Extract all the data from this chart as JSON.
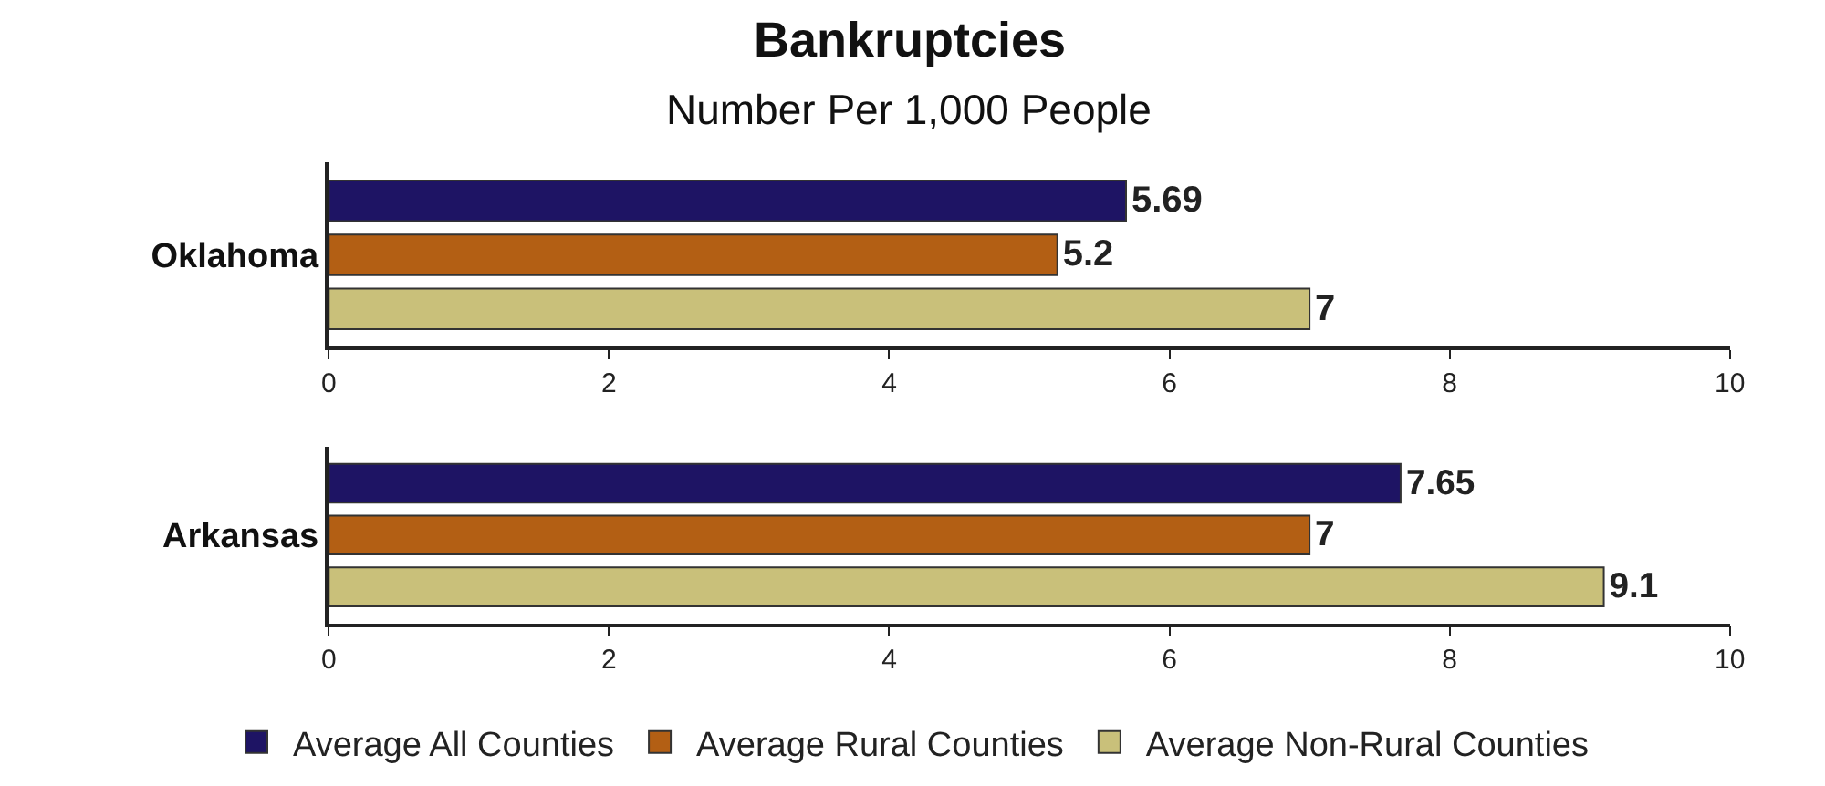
{
  "chart_data": [
    {
      "type": "bar",
      "orientation": "horizontal",
      "title": "Bankruptcies",
      "subtitle": "Number Per 1,000 People",
      "categories": [
        "Oklahoma"
      ],
      "series": [
        {
          "name": "Average All Counties",
          "color": "#1e1464",
          "values": [
            5.69
          ]
        },
        {
          "name": "Average Rural Counties",
          "color": "#b35f14",
          "values": [
            5.2
          ]
        },
        {
          "name": "Average Non-Rural Counties",
          "color": "#c9c07a",
          "values": [
            7
          ]
        }
      ],
      "xlim": [
        0,
        10
      ],
      "xticks": [
        0,
        2,
        4,
        6,
        8,
        10
      ],
      "data_labels": true,
      "legend": "bottom"
    },
    {
      "type": "bar",
      "orientation": "horizontal",
      "categories": [
        "Arkansas"
      ],
      "series": [
        {
          "color": "#1e1464",
          "values": [
            7.65
          ]
        },
        {
          "color": "#b35f14",
          "values": [
            7
          ]
        },
        {
          "color": "#c9c07a",
          "values": [
            9.1
          ]
        }
      ],
      "xlim": [
        0,
        10
      ],
      "xticks": [
        0,
        2,
        4,
        6,
        8,
        10
      ],
      "data_labels": true
    }
  ]
}
